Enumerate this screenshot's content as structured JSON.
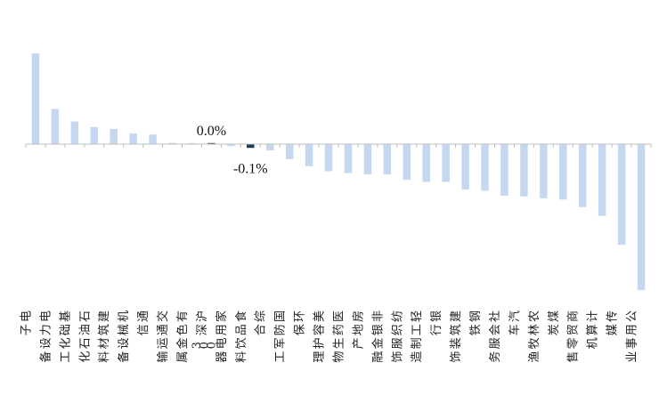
{
  "chart_data": {
    "type": "bar",
    "categories": [
      "电子",
      "电力设备",
      "基础化工",
      "石油石化",
      "建筑材料",
      "机械设备",
      "通信",
      "交通运输",
      "有色金属",
      "沪深300",
      "家用电器",
      "食品饮料",
      "综合",
      "国防军工",
      "环保",
      "美容护理",
      "医药生物",
      "房地产",
      "非银金融",
      "纺织服饰",
      "轻工制造",
      "银行",
      "建筑装饰",
      "钢铁",
      "社会服务",
      "汽车",
      "农林牧渔",
      "煤炭",
      "商贸零售",
      "计算机",
      "传媒",
      "公用事业"
    ],
    "values": [
      3.6,
      1.4,
      0.9,
      0.68,
      0.6,
      0.42,
      0.38,
      0.05,
      0.03,
      0.0,
      -0.08,
      -0.15,
      -0.25,
      -0.6,
      -0.88,
      -1.08,
      -1.15,
      -1.2,
      -1.2,
      -1.42,
      -1.5,
      -1.5,
      -1.8,
      -1.85,
      -2.05,
      -2.08,
      -2.15,
      -2.2,
      -2.5,
      -2.85,
      -4.0,
      -5.8
    ],
    "highlight": [
      "沪深300",
      "食品饮料"
    ],
    "data_labels": [
      {
        "category": "沪深300",
        "text": "0.0%"
      },
      {
        "category": "食品饮料",
        "text": "-0.1%"
      }
    ],
    "colors": {
      "bar": "#c6d8f0",
      "highlight": "#1f3b5b",
      "axis": "#bfbfbf"
    },
    "title": "",
    "xlabel": "",
    "ylabel": "",
    "ylim": [
      -5.8,
      3.6
    ],
    "grid": false,
    "legend": "none"
  }
}
